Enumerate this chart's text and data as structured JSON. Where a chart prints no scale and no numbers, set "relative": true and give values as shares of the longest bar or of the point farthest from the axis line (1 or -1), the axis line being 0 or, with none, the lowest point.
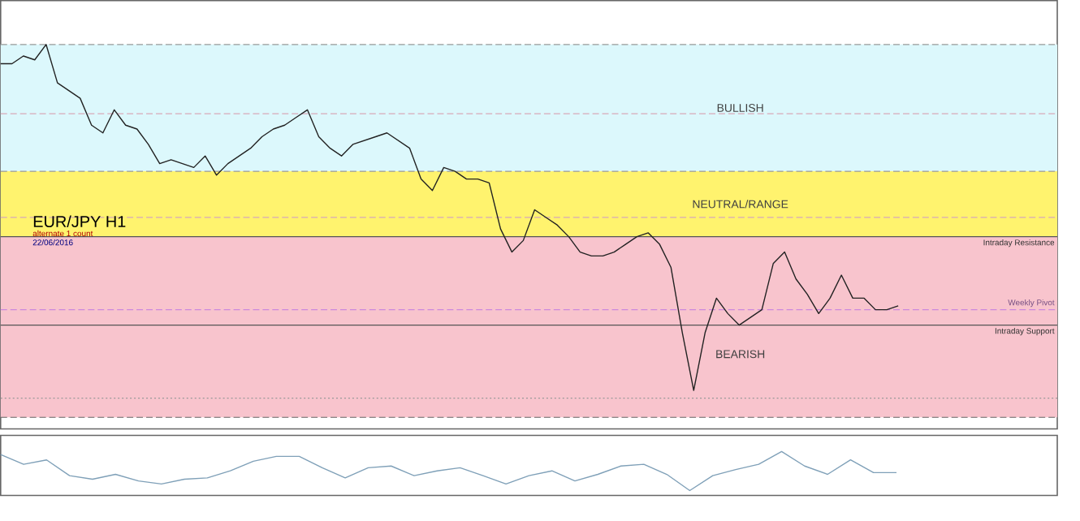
{
  "chart_data": [
    {
      "type": "line",
      "title": "EUR/JPY H1",
      "subtitle": "alternate 1 count",
      "annotations": [
        "22/06/2016"
      ],
      "relative": true,
      "categories": [
        null,
        null,
        null,
        null,
        null,
        null,
        null,
        null,
        null,
        null,
        null,
        null,
        null,
        null,
        null,
        null,
        null,
        null,
        null,
        null,
        null,
        null,
        null,
        null,
        null,
        null,
        null,
        null,
        null,
        null,
        null,
        null,
        null,
        null,
        null,
        null,
        null,
        null,
        null,
        null,
        null,
        null,
        null,
        null,
        null,
        null,
        null,
        null,
        null,
        null,
        null,
        null,
        null,
        null,
        null,
        null,
        null,
        null,
        null,
        null,
        null,
        null,
        null,
        null,
        null,
        null,
        null,
        null,
        null,
        null,
        null,
        null,
        null,
        null,
        null,
        null,
        null,
        null,
        null,
        null,
        null,
        null,
        null,
        null,
        null,
        null,
        null,
        null,
        null,
        null,
        null,
        null,
        null,
        null
      ],
      "series": [
        {
          "color": "#222222",
          "values": [
            0.95,
            0.95,
            0.97,
            0.96,
            1,
            0.9,
            0.88,
            0.86,
            0.79,
            0.77,
            0.83,
            0.79,
            0.78,
            0.74,
            0.69,
            0.7,
            0.69,
            0.68,
            0.71,
            0.66,
            0.69,
            0.71,
            0.73,
            0.76,
            0.78,
            0.79,
            0.81,
            0.83,
            0.76,
            0.73,
            0.71,
            0.74,
            0.75,
            0.76,
            0.77,
            0.75,
            0.73,
            0.65,
            0.62,
            0.68,
            0.67,
            0.65,
            0.65,
            0.64,
            0.52,
            0.46,
            0.49,
            0.57,
            0.55,
            0.53,
            0.5,
            0.46,
            0.45,
            0.45,
            0.46,
            0.48,
            0.5,
            0.51,
            0.48,
            0.42,
            0.25,
            0.1,
            0.25,
            0.34,
            0.3,
            0.27,
            0.29,
            0.31,
            0.43,
            0.46,
            0.39,
            0.35,
            0.3,
            0.34,
            0.4,
            0.34,
            0.34,
            0.31,
            0.31,
            0.32,
            null,
            null,
            null,
            null,
            null,
            null,
            null,
            null,
            null,
            null,
            null,
            null,
            null,
            null
          ]
        }
      ],
      "bands": [
        {
          "axis": "y",
          "from": 0.67,
          "to": 1.0,
          "label": "BULLISH",
          "color": "#dcf8fc"
        },
        {
          "axis": "y",
          "from": 0.5,
          "to": 0.67,
          "label": "NEUTRAL/RANGE",
          "color": "#fff36e"
        },
        {
          "axis": "y",
          "from": 0.03,
          "to": 0.5,
          "label": "BEARISH",
          "color": "#f8c4cd"
        }
      ],
      "ref_lines": [
        {
          "axis": "y",
          "value": 1.0,
          "color": "#999999",
          "line_style": "dashed"
        },
        {
          "axis": "y",
          "value": 0.82,
          "color": "#d8a8b8",
          "line_style": "dashed"
        },
        {
          "axis": "y",
          "value": 0.67,
          "color": "#999999",
          "line_style": "dashed"
        },
        {
          "axis": "y",
          "value": 0.55,
          "color": "#d8a8b8",
          "line_style": "dashed"
        },
        {
          "axis": "y",
          "value": 0.5,
          "label": "Intraday Resistance",
          "color": "#555555",
          "line_style": "solid"
        },
        {
          "axis": "y",
          "value": 0.31,
          "label": "Weekly Pivot",
          "color": "#cc88dd",
          "line_style": "dashed"
        },
        {
          "axis": "y",
          "value": 0.27,
          "label": "Intraday Support",
          "color": "#555555",
          "line_style": "solid"
        },
        {
          "axis": "y",
          "value": 0.08,
          "color": "#999999",
          "line_style": "dotted"
        },
        {
          "axis": "y",
          "value": 0.03,
          "color": "#666666",
          "line_style": "dashed"
        }
      ],
      "marker": "none",
      "line_style": "solid"
    },
    {
      "type": "line",
      "relative": true,
      "categories": [
        null,
        null,
        null,
        null,
        null,
        null,
        null,
        null,
        null,
        null,
        null,
        null,
        null,
        null,
        null,
        null,
        null,
        null,
        null,
        null,
        null,
        null,
        null,
        null,
        null,
        null,
        null,
        null,
        null,
        null,
        null,
        null,
        null,
        null,
        null,
        null,
        null,
        null,
        null,
        null,
        null,
        null,
        null,
        null,
        null,
        null,
        null
      ],
      "series": [
        {
          "color": "#7fa0b8",
          "values": [
            0.93,
            0.71,
            0.81,
            0.45,
            0.37,
            0.48,
            0.33,
            0.26,
            0.37,
            0.4,
            0.56,
            0.78,
            0.89,
            0.89,
            0.63,
            0.4,
            0.63,
            0.67,
            0.45,
            0.56,
            0.63,
            0.45,
            0.26,
            0.45,
            0.56,
            0.33,
            0.48,
            0.67,
            0.71,
            0.48,
            0.11,
            0.45,
            0.59,
            0.71,
            1,
            0.67,
            0.48,
            0.81,
            0.52,
            0.52,
            null,
            null,
            null,
            null,
            null,
            null,
            null
          ]
        }
      ],
      "marker": "none",
      "line_style": "solid"
    }
  ]
}
